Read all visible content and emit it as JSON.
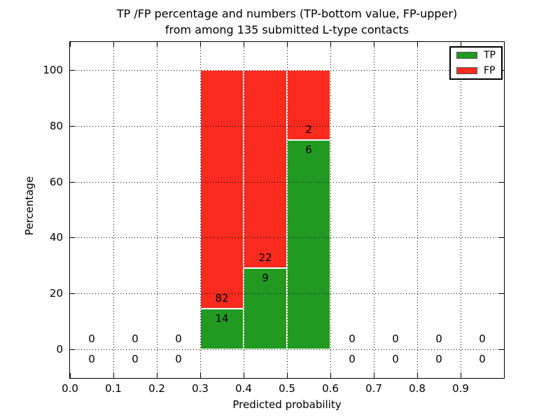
{
  "figure": {
    "title_line1": "TP /FP percentage and numbers (TP-bottom value, FP-upper)",
    "title_line2": "from among 135 submitted L-type contacts"
  },
  "chart_data": {
    "type": "bar",
    "stacked": true,
    "title": "TP /FP percentage and numbers (TP-bottom value, FP-upper) from among 135 submitted L-type contacts",
    "xlabel": "Predicted probability",
    "ylabel": "Percentage",
    "xlim": [
      0.0,
      1.0
    ],
    "ylim": [
      -10.5,
      110
    ],
    "grid": true,
    "grid_style": "dotted",
    "x_tick_labels": [
      "0.0",
      "0.1",
      "0.2",
      "0.3",
      "0.4",
      "0.5",
      "0.6",
      "0.7",
      "0.8",
      "0.9"
    ],
    "x_tick_values": [
      0.0,
      0.1,
      0.2,
      0.3,
      0.4,
      0.5,
      0.6,
      0.7,
      0.8,
      0.9
    ],
    "y_tick_labels": [
      "0",
      "20",
      "40",
      "60",
      "80",
      "100"
    ],
    "y_tick_values": [
      0,
      20,
      40,
      60,
      80,
      100
    ],
    "legend": {
      "position": "upper right",
      "entries": [
        {
          "label": "TP",
          "color": "#229a22"
        },
        {
          "label": "FP",
          "color": "#fb2a1f"
        }
      ]
    },
    "label_convention": "TP count is the bottom number, FP count is the upper number; bar height is percentage of bin total",
    "bins": [
      {
        "x0": 0.0,
        "x1": 0.1,
        "tp": 0,
        "fp": 0
      },
      {
        "x0": 0.1,
        "x1": 0.2,
        "tp": 0,
        "fp": 0
      },
      {
        "x0": 0.2,
        "x1": 0.3,
        "tp": 0,
        "fp": 0
      },
      {
        "x0": 0.3,
        "x1": 0.4,
        "tp": 14,
        "fp": 82
      },
      {
        "x0": 0.4,
        "x1": 0.5,
        "tp": 9,
        "fp": 22
      },
      {
        "x0": 0.5,
        "x1": 0.6,
        "tp": 6,
        "fp": 2
      },
      {
        "x0": 0.6,
        "x1": 0.7,
        "tp": 0,
        "fp": 0
      },
      {
        "x0": 0.7,
        "x1": 0.8,
        "tp": 0,
        "fp": 0
      },
      {
        "x0": 0.8,
        "x1": 0.9,
        "tp": 0,
        "fp": 0
      },
      {
        "x0": 0.9,
        "x1": 1.0,
        "tp": 0,
        "fp": 0
      }
    ]
  },
  "colors": {
    "tp_green": "#229a22",
    "fp_red": "#fb2a1f",
    "grid": "#000000",
    "text": "#000000",
    "background": "#ffffff",
    "legend_border": "#000000"
  }
}
